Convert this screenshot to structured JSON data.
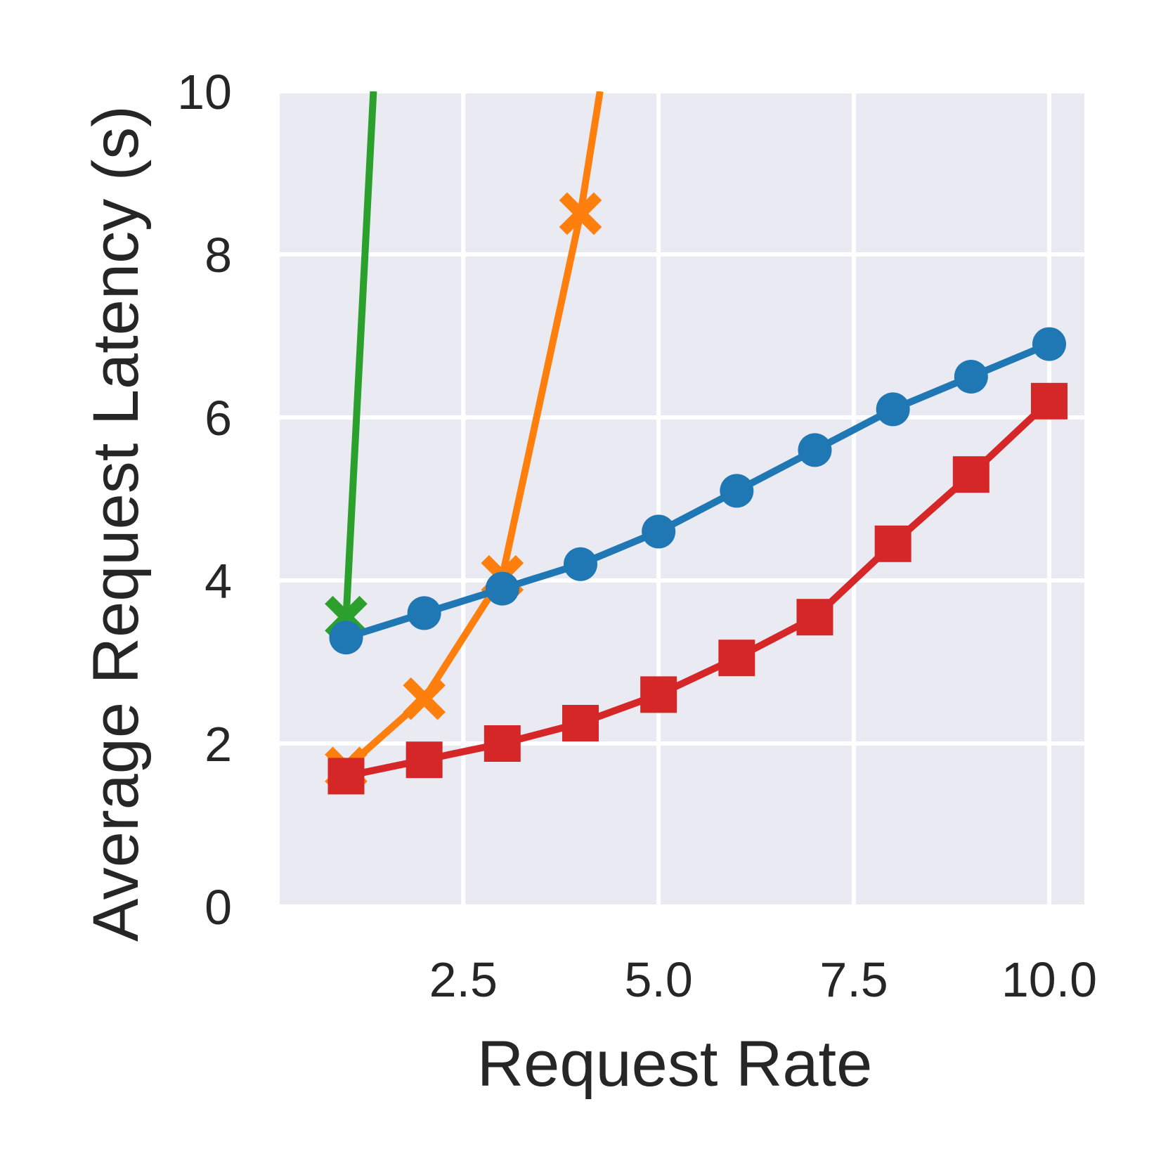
{
  "chart_data": {
    "type": "line",
    "xlabel": "Request Rate",
    "ylabel": "Average Request Latency (s)",
    "xlim": [
      0.15,
      10.45
    ],
    "ylim": [
      0,
      10
    ],
    "x_ticks": [
      2.5,
      5.0,
      7.5,
      10.0
    ],
    "x_tick_labels": [
      "2.5",
      "5.0",
      "7.5",
      "10.0"
    ],
    "y_ticks": [
      0,
      2,
      4,
      6,
      8,
      10
    ],
    "y_tick_labels": [
      "0",
      "2",
      "4",
      "6",
      "8",
      "10"
    ],
    "grid": true,
    "background": "#eaeaf2",
    "series": [
      {
        "color": "#2ca02c",
        "marker": "x",
        "x": [
          1,
          1.35
        ],
        "y": [
          3.55,
          10.0
        ],
        "clipped_at_top": true
      },
      {
        "color": "#ff7f0e",
        "marker": "x",
        "x": [
          1,
          2,
          3,
          4,
          4.25
        ],
        "y": [
          1.7,
          2.55,
          4.05,
          8.5,
          10.0
        ],
        "clipped_at_top": true
      },
      {
        "color": "#1f77b4",
        "marker": "o",
        "x": [
          1,
          2,
          3,
          4,
          5,
          6,
          7,
          8,
          9,
          10
        ],
        "y": [
          3.3,
          3.6,
          3.9,
          4.2,
          4.6,
          5.1,
          5.6,
          6.1,
          6.5,
          6.9
        ]
      },
      {
        "color": "#d62728",
        "marker": "s",
        "x": [
          1,
          2,
          3,
          4,
          5,
          6,
          7,
          8,
          9,
          10
        ],
        "y": [
          1.6,
          1.8,
          2.0,
          2.25,
          2.6,
          3.05,
          3.55,
          4.45,
          5.3,
          6.2
        ]
      }
    ]
  }
}
